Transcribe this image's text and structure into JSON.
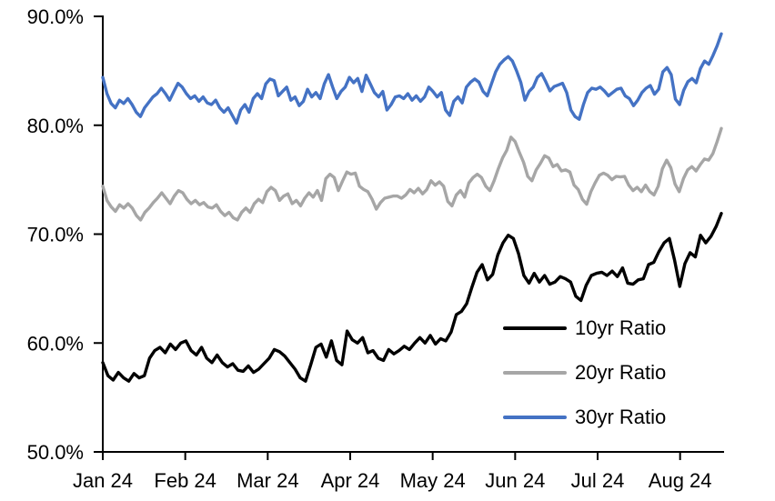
{
  "chart_data": {
    "type": "line",
    "title": "",
    "xlabel": "",
    "ylabel": "",
    "grid": false,
    "background": "#ffffff",
    "axis_color": "#000000",
    "legend_position": "inside-lower-right",
    "y_min": 50,
    "y_max": 90,
    "y_step": 10,
    "y_tick_labels": [
      "50.0%",
      "60.0%",
      "70.0%",
      "80.0%",
      "90.0%"
    ],
    "x_tick_labels": [
      "Jan 24",
      "Feb 24",
      "Mar 24",
      "Apr 24",
      "May 24",
      "Jun 24",
      "Jul 24",
      "Aug 24"
    ],
    "x_span_months": 7.5,
    "series": [
      {
        "name": "10yr Ratio",
        "color": "#000000",
        "values": [
          58.2,
          57.0,
          56.6,
          57.3,
          56.8,
          56.5,
          57.2,
          56.8,
          57.0,
          58.6,
          59.3,
          59.6,
          59.1,
          59.9,
          59.4,
          60.0,
          60.2,
          59.3,
          58.9,
          59.6,
          58.6,
          58.2,
          58.9,
          58.2,
          57.8,
          58.1,
          57.5,
          57.4,
          57.9,
          57.3,
          57.6,
          58.1,
          58.6,
          59.4,
          59.2,
          58.8,
          58.2,
          57.6,
          56.8,
          56.5,
          58.0,
          59.6,
          59.9,
          58.7,
          60.2,
          58.4,
          58.0,
          61.1,
          60.3,
          60.0,
          60.5,
          59.1,
          59.3,
          58.6,
          58.4,
          59.4,
          59.0,
          59.3,
          59.7,
          59.4,
          60.0,
          60.5,
          60.0,
          60.7,
          59.9,
          60.4,
          60.2,
          61.0,
          62.6,
          62.9,
          63.6,
          65.1,
          66.5,
          67.2,
          65.8,
          66.3,
          68.1,
          69.2,
          69.9,
          69.6,
          68.2,
          66.2,
          65.5,
          66.4,
          65.6,
          66.2,
          65.4,
          65.6,
          66.1,
          65.9,
          65.6,
          64.3,
          63.9,
          65.3,
          66.2,
          66.4,
          66.5,
          66.2,
          66.6,
          66.1,
          66.9,
          65.5,
          65.4,
          65.8,
          65.9,
          67.2,
          67.4,
          68.4,
          69.2,
          69.6,
          67.6,
          65.2,
          67.3,
          68.3,
          67.9,
          69.9,
          69.2,
          69.8,
          70.7,
          71.9
        ]
      },
      {
        "name": "20yr Ratio",
        "color": "#a6a6a6",
        "values": [
          74.4,
          73.1,
          72.5,
          72.1,
          72.7,
          72.4,
          72.8,
          72.4,
          71.7,
          71.3,
          72.0,
          72.4,
          72.9,
          73.3,
          73.8,
          73.3,
          72.8,
          73.5,
          74.0,
          73.8,
          73.2,
          72.8,
          73.1,
          72.7,
          72.9,
          72.5,
          72.4,
          72.7,
          72.1,
          71.7,
          72.0,
          71.5,
          71.3,
          72.0,
          72.4,
          72.0,
          72.8,
          73.2,
          72.9,
          73.9,
          74.3,
          74.0,
          73.1,
          73.5,
          73.7,
          72.8,
          73.1,
          72.6,
          73.3,
          73.8,
          73.4,
          74.0,
          73.1,
          75.1,
          75.5,
          75.2,
          74.0,
          74.9,
          75.7,
          75.5,
          75.6,
          74.4,
          74.1,
          73.9,
          73.2,
          72.3,
          72.9,
          73.3,
          73.4,
          73.5,
          73.5,
          73.3,
          73.6,
          74.1,
          73.8,
          74.2,
          73.7,
          74.1,
          74.9,
          74.5,
          74.8,
          74.4,
          73.0,
          72.6,
          73.6,
          74.0,
          73.4,
          74.7,
          75.2,
          75.5,
          75.2,
          74.4,
          74.0,
          74.9,
          76.0,
          77.0,
          77.7,
          78.9,
          78.5,
          77.5,
          76.6,
          75.3,
          74.9,
          75.9,
          76.5,
          77.2,
          77.0,
          76.2,
          76.4,
          75.8,
          75.9,
          75.7,
          74.5,
          74.1,
          73.2,
          72.75,
          73.9,
          74.7,
          75.4,
          75.6,
          75.4,
          75.0,
          75.3,
          75.25,
          75.3,
          74.5,
          74.0,
          74.3,
          73.9,
          74.5,
          73.9,
          73.6,
          74.4,
          76.0,
          76.8,
          76.1,
          74.6,
          73.9,
          75.1,
          75.9,
          76.2,
          75.8,
          76.4,
          76.9,
          76.8,
          77.4,
          78.5,
          79.7
        ]
      },
      {
        "name": "30yr Ratio",
        "color": "#4472c4",
        "values": [
          84.4,
          82.9,
          82.0,
          81.6,
          82.3,
          82.0,
          82.45,
          81.9,
          81.2,
          80.8,
          81.6,
          82.1,
          82.6,
          82.9,
          83.4,
          82.9,
          82.3,
          83.1,
          83.85,
          83.5,
          82.9,
          82.45,
          82.7,
          82.2,
          82.6,
          82.05,
          81.9,
          82.3,
          81.6,
          81.2,
          81.6,
          80.9,
          80.2,
          81.4,
          81.9,
          81.2,
          82.45,
          82.9,
          82.45,
          83.8,
          84.25,
          84.1,
          82.7,
          83.1,
          83.5,
          82.3,
          82.6,
          81.8,
          82.2,
          83.3,
          82.6,
          83.0,
          82.45,
          83.8,
          84.65,
          83.5,
          82.45,
          83.1,
          83.5,
          84.4,
          83.9,
          84.3,
          83.1,
          84.6,
          83.8,
          83.0,
          82.6,
          83.1,
          81.4,
          81.9,
          82.6,
          82.7,
          82.45,
          82.9,
          82.3,
          82.7,
          82.2,
          82.6,
          83.5,
          83.1,
          82.6,
          83.0,
          81.4,
          80.9,
          82.2,
          82.6,
          82.05,
          83.5,
          83.95,
          84.25,
          83.95,
          83.1,
          82.7,
          83.8,
          84.9,
          85.6,
          86.0,
          86.3,
          85.9,
          85.0,
          83.95,
          82.3,
          83.1,
          83.5,
          84.4,
          84.75,
          84.0,
          83.15,
          83.55,
          83.7,
          83.85,
          83.0,
          81.4,
          80.8,
          80.55,
          81.9,
          83.0,
          83.4,
          83.3,
          83.5,
          83.15,
          82.7,
          83.0,
          83.3,
          83.4,
          82.7,
          82.45,
          81.8,
          82.3,
          83.0,
          83.4,
          83.65,
          82.85,
          83.3,
          84.9,
          85.3,
          84.65,
          82.4,
          81.9,
          83.2,
          84.0,
          84.3,
          83.9,
          85.2,
          85.9,
          85.6,
          86.4,
          87.3,
          88.4
        ]
      }
    ]
  }
}
